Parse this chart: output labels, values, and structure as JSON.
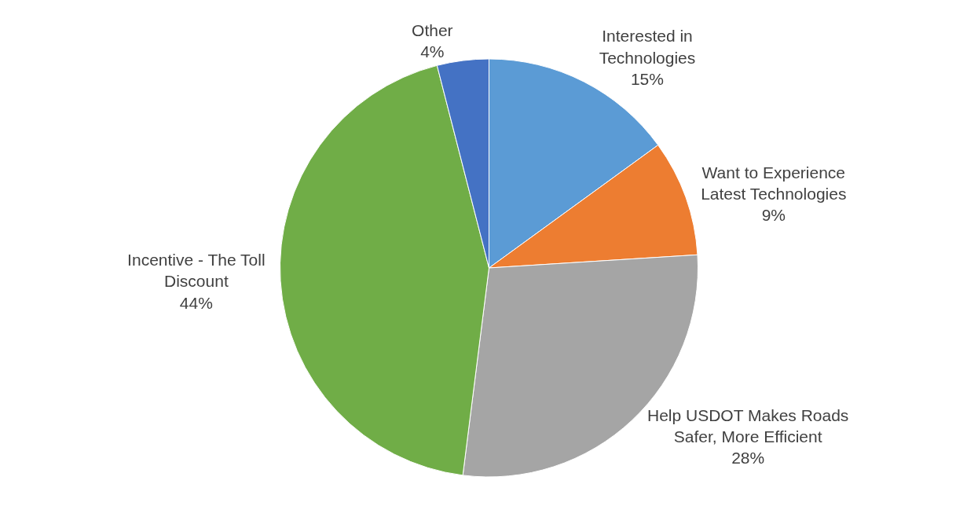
{
  "chart_data": {
    "type": "pie",
    "categories": [
      "Interested in Technologies",
      "Want to Experience Latest Technologies",
      "Help USDOT Makes Roads Safer, More Efficient",
      "Incentive - The Toll Discount",
      "Other"
    ],
    "values": [
      15,
      9,
      28,
      44,
      4
    ],
    "value_labels": [
      "15%",
      "9%",
      "28%",
      "44%",
      "4%"
    ],
    "colors": [
      "#5b9bd5",
      "#ed7d31",
      "#a5a5a5",
      "#70ad47",
      "#4472c4"
    ],
    "legend": false
  }
}
